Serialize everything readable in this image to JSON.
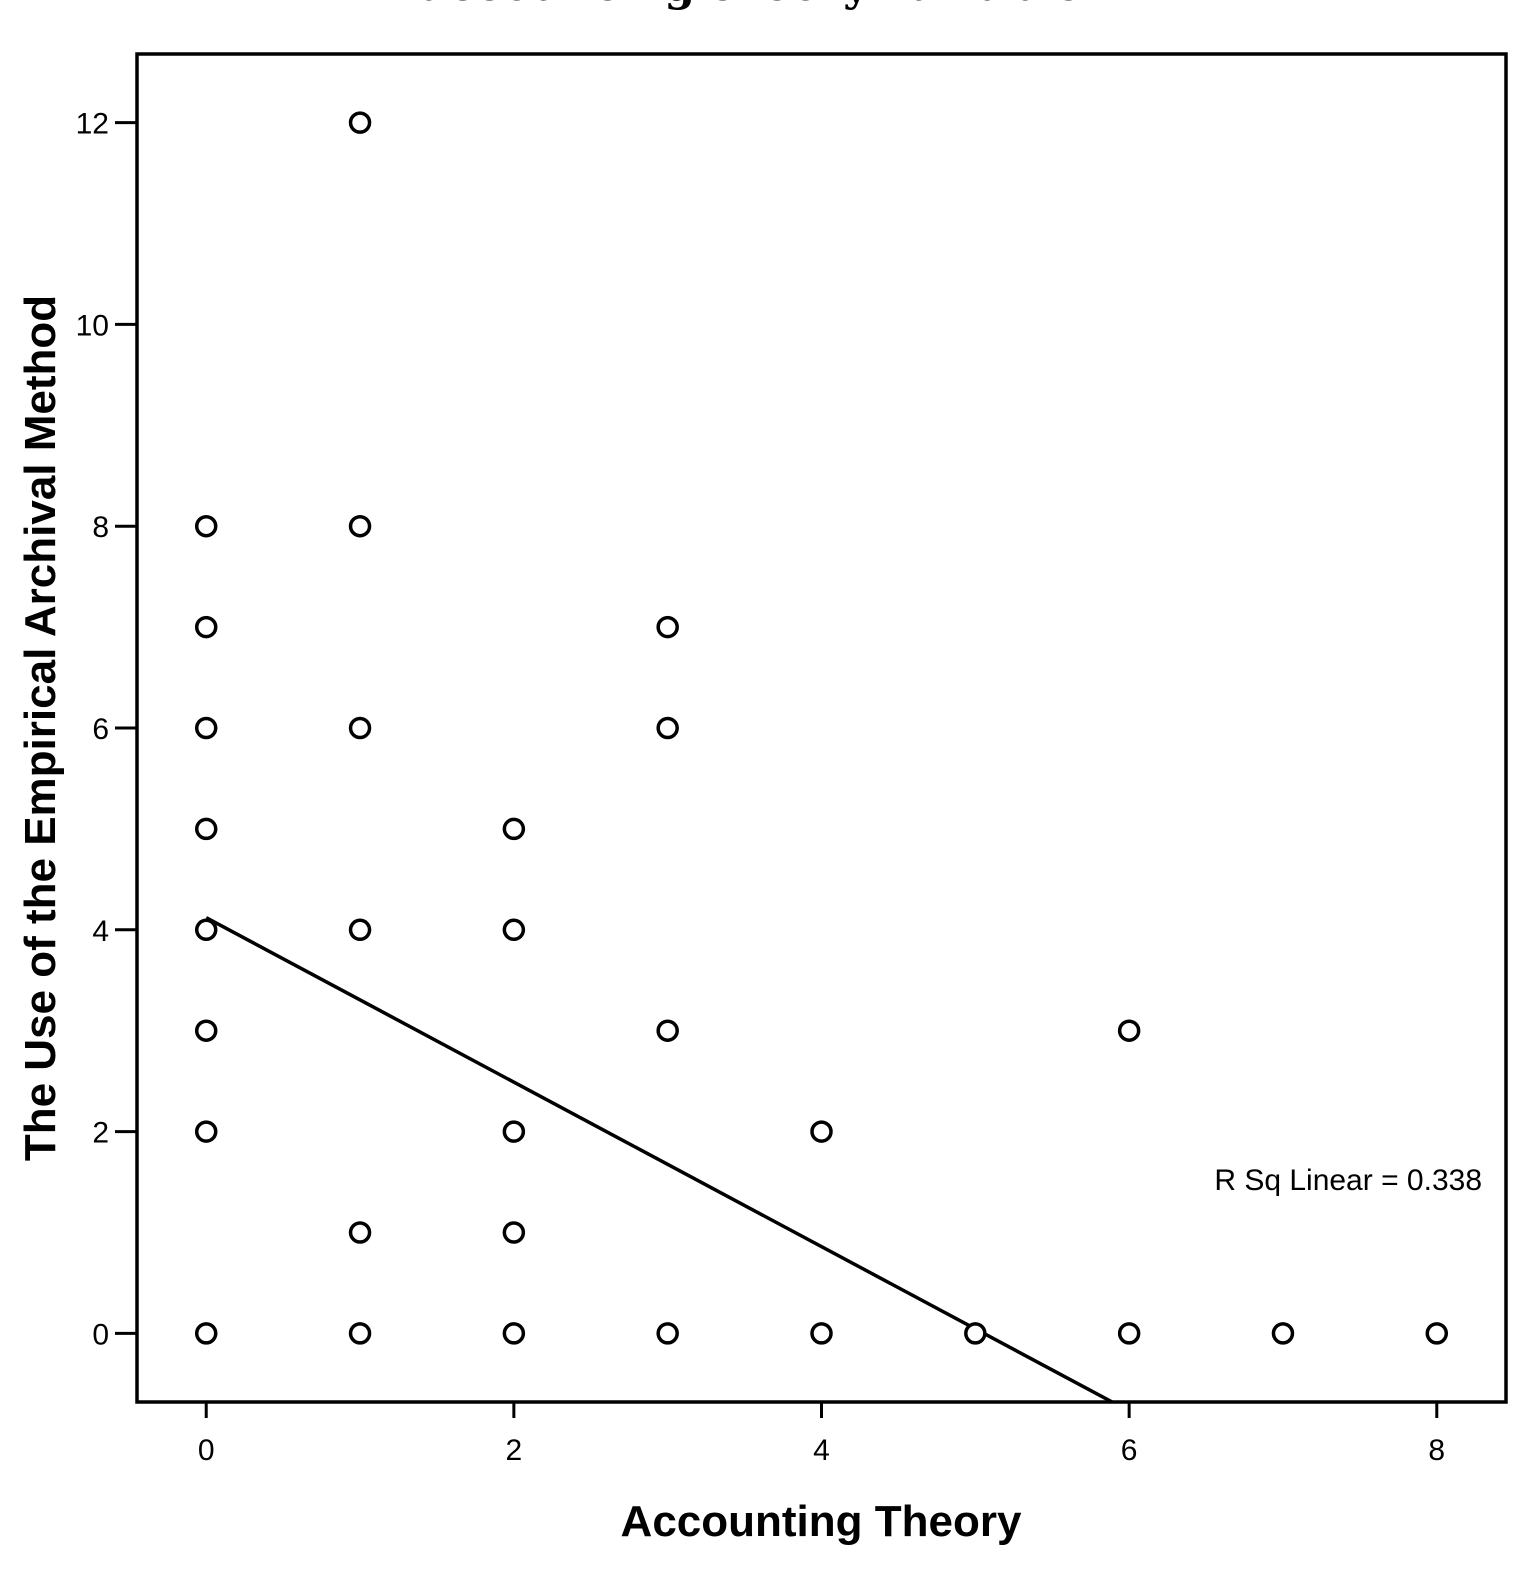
{
  "chart_data": {
    "type": "scatter",
    "title": "accounting theory variable",
    "xlabel": "Accounting Theory",
    "ylabel": "The Use of  the Empirical Archival Method",
    "xlim": [
      -0.45,
      8.45
    ],
    "ylim": [
      -0.68,
      12.68
    ],
    "x_ticks": [
      0,
      2,
      4,
      6,
      8
    ],
    "y_ticks": [
      0,
      2,
      4,
      6,
      8,
      10,
      12
    ],
    "grid": false,
    "marker": "open-circle",
    "points": [
      {
        "x": 0,
        "y": 8
      },
      {
        "x": 0,
        "y": 7
      },
      {
        "x": 0,
        "y": 6
      },
      {
        "x": 0,
        "y": 5
      },
      {
        "x": 0,
        "y": 4
      },
      {
        "x": 0,
        "y": 3
      },
      {
        "x": 0,
        "y": 2
      },
      {
        "x": 0,
        "y": 0
      },
      {
        "x": 1,
        "y": 12
      },
      {
        "x": 1,
        "y": 8
      },
      {
        "x": 1,
        "y": 6
      },
      {
        "x": 1,
        "y": 4
      },
      {
        "x": 1,
        "y": 1
      },
      {
        "x": 1,
        "y": 0
      },
      {
        "x": 2,
        "y": 5
      },
      {
        "x": 2,
        "y": 4
      },
      {
        "x": 2,
        "y": 2
      },
      {
        "x": 2,
        "y": 1
      },
      {
        "x": 2,
        "y": 0
      },
      {
        "x": 3,
        "y": 7
      },
      {
        "x": 3,
        "y": 6
      },
      {
        "x": 3,
        "y": 3
      },
      {
        "x": 3,
        "y": 0
      },
      {
        "x": 4,
        "y": 2
      },
      {
        "x": 4,
        "y": 0
      },
      {
        "x": 5,
        "y": 0
      },
      {
        "x": 6,
        "y": 3
      },
      {
        "x": 6,
        "y": 0
      },
      {
        "x": 7,
        "y": 0
      },
      {
        "x": 8,
        "y": 0
      }
    ],
    "fit_line": {
      "type": "linear",
      "intercept": 4.12,
      "slope": -0.815,
      "label": "R Sq Linear = 0.338"
    }
  }
}
